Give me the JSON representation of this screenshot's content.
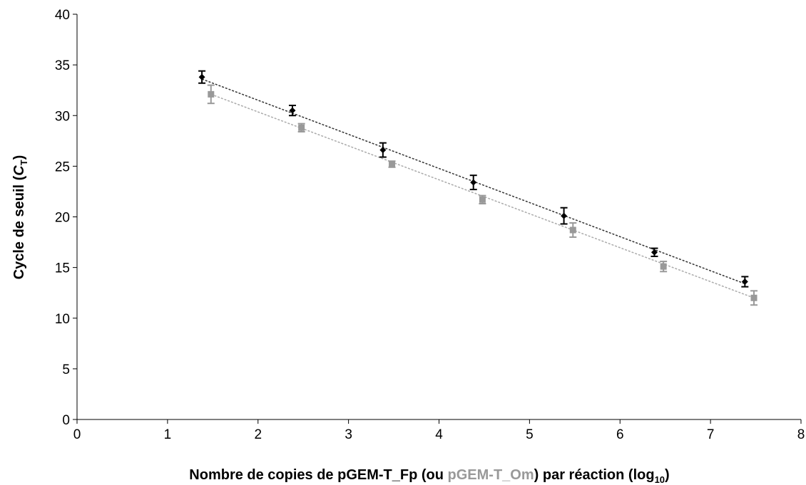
{
  "chart_data": {
    "type": "scatter",
    "title": "",
    "xlabel": {
      "part1": "Nombre de copies de pGEM-T_Fp (ou ",
      "part2": "pGEM-T_Om",
      "part3": ") par réaction (log",
      "sub": "10",
      "part4": ")"
    },
    "ylabel": {
      "main": "Cycle de seuil (",
      "italic": "C",
      "sub": "T",
      "close": ")"
    },
    "xlim": [
      0,
      8
    ],
    "ylim": [
      0,
      40
    ],
    "xticks": [
      "0",
      "1",
      "2",
      "3",
      "4",
      "5",
      "6",
      "7",
      "8"
    ],
    "yticks": [
      "0",
      "5",
      "10",
      "15",
      "20",
      "25",
      "30",
      "35",
      "40"
    ],
    "grid": false,
    "series": [
      {
        "marker": "diamond",
        "color": "#000000",
        "x": [
          1.38,
          2.38,
          3.38,
          4.38,
          5.38,
          6.38,
          7.38
        ],
        "y": [
          33.8,
          30.5,
          26.6,
          23.4,
          20.1,
          16.5,
          13.6
        ],
        "err": [
          0.6,
          0.5,
          0.7,
          0.7,
          0.8,
          0.4,
          0.5
        ],
        "trend": {
          "x": [
            1.38,
            7.38
          ],
          "y": [
            33.6,
            13.4
          ],
          "color": "#333333"
        }
      },
      {
        "marker": "square",
        "color": "#999999",
        "x": [
          1.48,
          2.48,
          3.48,
          4.48,
          5.48,
          6.48,
          7.48
        ],
        "y": [
          32.1,
          28.8,
          25.2,
          21.7,
          18.7,
          15.1,
          12.0
        ],
        "err": [
          0.9,
          0.4,
          0.3,
          0.4,
          0.7,
          0.5,
          0.7
        ],
        "trend": {
          "x": [
            1.48,
            7.48
          ],
          "y": [
            32.1,
            12.0
          ],
          "color": "#aaaaaa"
        }
      }
    ]
  }
}
